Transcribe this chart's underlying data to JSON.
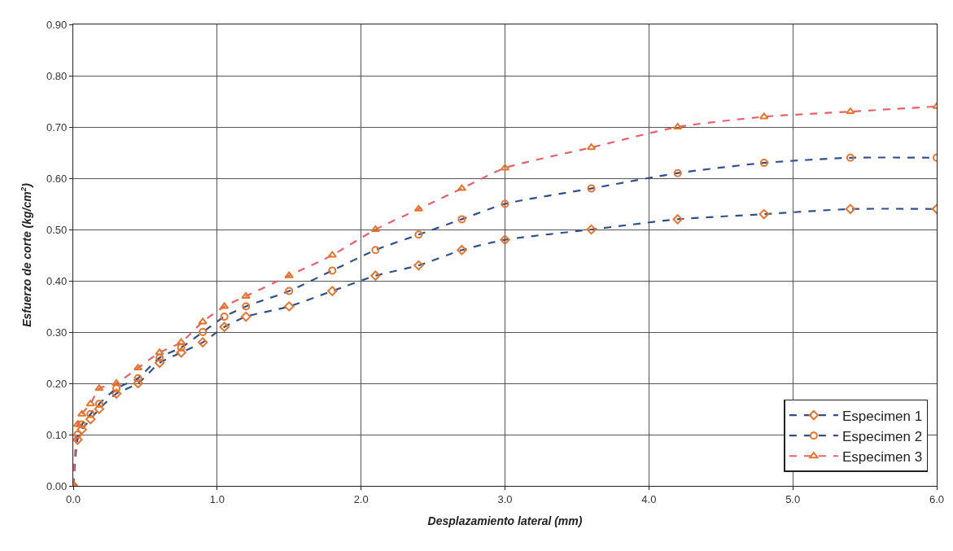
{
  "chart_data": {
    "type": "line",
    "xlabel": "Desplazamiento lateral (mm)",
    "ylabel": "Esfuerzo de corte (kg/cm$^{2}$)",
    "x": [
      0,
      0.03,
      0.06,
      0.12,
      0.18,
      0.3,
      0.45,
      0.6,
      0.75,
      0.9,
      1.05,
      1.2,
      1.5,
      1.8,
      2.1,
      2.4,
      2.7,
      3.0,
      3.6,
      4.2,
      4.8,
      5.4,
      6.0
    ],
    "series": [
      {
        "name": "Especimen 1",
        "color": "#2f4f8f",
        "marker": "diamond",
        "values": [
          0,
          0.09,
          0.11,
          0.13,
          0.15,
          0.18,
          0.2,
          0.24,
          0.26,
          0.28,
          0.31,
          0.33,
          0.35,
          0.38,
          0.41,
          0.43,
          0.46,
          0.48,
          0.5,
          0.52,
          0.53,
          0.54,
          0.54
        ]
      },
      {
        "name": "Especimen 2",
        "color": "#2f4f8f",
        "marker": "circle",
        "values": [
          0,
          0.1,
          0.12,
          0.14,
          0.16,
          0.19,
          0.21,
          0.25,
          0.27,
          0.3,
          0.33,
          0.35,
          0.38,
          0.42,
          0.46,
          0.49,
          0.52,
          0.55,
          0.58,
          0.61,
          0.63,
          0.64,
          0.64
        ]
      },
      {
        "name": "Especimen 3",
        "color": "#e8606a",
        "marker": "triangle",
        "values": [
          0,
          0.12,
          0.14,
          0.16,
          0.19,
          0.2,
          0.23,
          0.26,
          0.28,
          0.32,
          0.35,
          0.37,
          0.41,
          0.45,
          0.5,
          0.54,
          0.58,
          0.62,
          0.66,
          0.7,
          0.72,
          0.73,
          0.74
        ]
      }
    ],
    "xlim": [
      0,
      6
    ],
    "xticks": [
      {
        "value": 0,
        "label": "0.0"
      },
      {
        "value": 1,
        "label": "1.0"
      },
      {
        "value": 2,
        "label": "2.0"
      },
      {
        "value": 3,
        "label": "3.0"
      },
      {
        "value": 4,
        "label": "4.0"
      },
      {
        "value": 5,
        "label": "5.0"
      },
      {
        "value": 6,
        "label": "6.0"
      }
    ],
    "ylim": [
      0,
      0.9
    ],
    "yticks": [
      {
        "value": 0,
        "label": "0.00"
      },
      {
        "value": 0.1,
        "label": "0.10"
      },
      {
        "value": 0.2,
        "label": "0.20"
      },
      {
        "value": 0.3,
        "label": "0.30"
      },
      {
        "value": 0.4,
        "label": "0.40"
      },
      {
        "value": 0.5,
        "label": "0.50"
      },
      {
        "value": 0.6,
        "label": "0.60"
      },
      {
        "value": 0.7,
        "label": "0.70"
      },
      {
        "value": 0.8,
        "label": "0.80"
      },
      {
        "value": 0.9,
        "label": "0.90"
      }
    ],
    "grid": true,
    "legend": "bottom right",
    "line_style": "dashed"
  }
}
